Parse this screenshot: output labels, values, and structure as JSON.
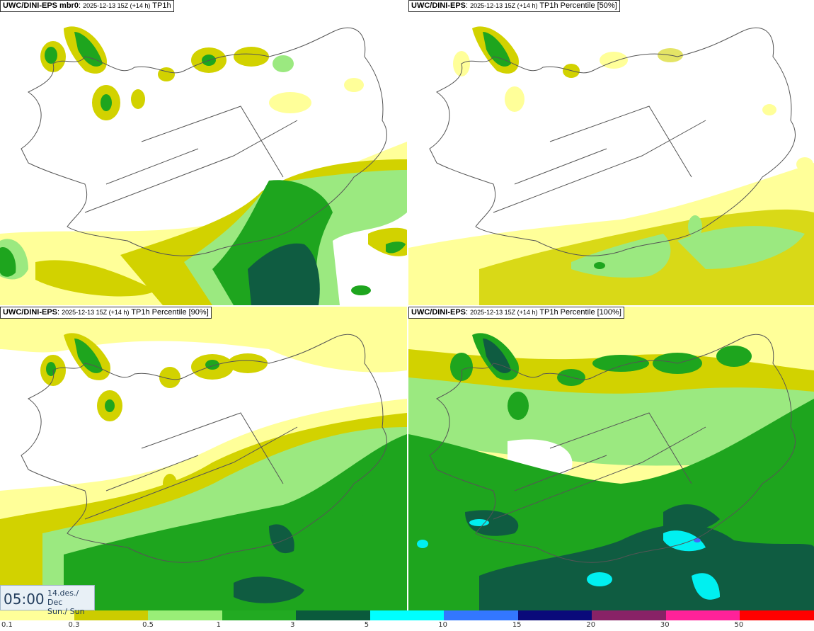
{
  "panels": [
    {
      "model": "UWC/DINI-EPS mbr0",
      "date": "2025-12-13 15Z (+14 h)",
      "variable": "TP1h"
    },
    {
      "model": "UWC/DINI-EPS",
      "date": "2025-12-13 15Z (+14 h)",
      "variable": "TP1h Percentile [50%]"
    },
    {
      "model": "UWC/DINI-EPS",
      "date": "2025-12-13 15Z (+14 h)",
      "variable": "TP1h Percentile [90%]"
    },
    {
      "model": "UWC/DINI-EPS",
      "date": "2025-12-13 15Z (+14 h)",
      "variable": "TP1h Percentile [100%]"
    }
  ],
  "valid_time": {
    "time": "05:00",
    "date": "14.des./ Dec",
    "day": "Sun./ Sun"
  },
  "colorbar": {
    "labels": [
      "0.1",
      "0.3",
      "0.5",
      "1",
      "3",
      "5",
      "10",
      "15",
      "20",
      "30",
      "50"
    ],
    "colors": [
      "#ffff99",
      "#cccc00",
      "#99ee77",
      "#22aa22",
      "#0a5a3c",
      "#00ffff",
      "#3377ff",
      "#0a0a7a",
      "#882266",
      "#ff2299",
      "#ff0000"
    ]
  },
  "precip_colors": {
    "c01": "#ffff99",
    "c03": "#d2d200",
    "c05": "#9be980",
    "c1": "#1ea51e",
    "c3": "#0f5c41",
    "c5": "#00f0f0",
    "c10": "#4466ff"
  }
}
